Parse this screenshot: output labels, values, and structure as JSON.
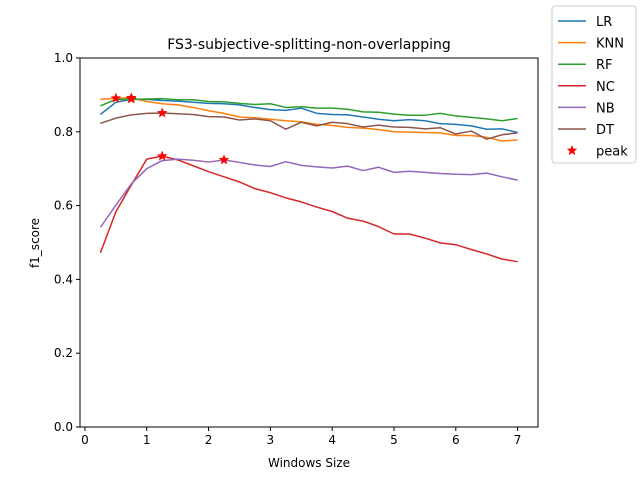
{
  "chart_data": {
    "type": "line",
    "title": "FS3-subjective-splitting-non-overlapping",
    "xlabel": "Windows Size",
    "ylabel": "f1_score",
    "xlim": [
      -0.08,
      7.33
    ],
    "ylim": [
      0.0,
      1.0
    ],
    "xticks": [
      0,
      1,
      2,
      3,
      4,
      5,
      6,
      7
    ],
    "yticks": [
      0.0,
      0.2,
      0.4,
      0.6,
      0.8,
      1.0
    ],
    "xtick_labels": [
      "0",
      "1",
      "2",
      "3",
      "4",
      "5",
      "6",
      "7"
    ],
    "ytick_labels": [
      "0.0",
      "0.2",
      "0.4",
      "0.6",
      "0.8",
      "1.0"
    ],
    "grid": false,
    "legend_position": "outside-top-right",
    "x": [
      0.25,
      0.5,
      0.75,
      1.0,
      1.25,
      1.5,
      1.75,
      2.0,
      2.25,
      2.5,
      2.75,
      3.0,
      3.25,
      3.5,
      3.75,
      4.0,
      4.25,
      4.5,
      4.75,
      5.0,
      5.25,
      5.5,
      5.75,
      6.0,
      6.25,
      6.5,
      6.75,
      7.0
    ],
    "series": [
      {
        "name": "LR",
        "color": "#1f77b4",
        "values": [
          0.847,
          0.88,
          0.888,
          0.888,
          0.885,
          0.883,
          0.88,
          0.877,
          0.876,
          0.873,
          0.866,
          0.86,
          0.858,
          0.864,
          0.85,
          0.847,
          0.846,
          0.84,
          0.834,
          0.83,
          0.833,
          0.83,
          0.822,
          0.82,
          0.816,
          0.807,
          0.808,
          0.798
        ]
      },
      {
        "name": "KNN",
        "color": "#ff7f0e",
        "values": [
          0.888,
          0.891,
          0.892,
          0.882,
          0.876,
          0.873,
          0.866,
          0.857,
          0.85,
          0.84,
          0.838,
          0.834,
          0.83,
          0.827,
          0.82,
          0.817,
          0.812,
          0.81,
          0.806,
          0.8,
          0.799,
          0.798,
          0.797,
          0.79,
          0.79,
          0.785,
          0.775,
          0.778
        ]
      },
      {
        "name": "RF",
        "color": "#2ca02c",
        "values": [
          0.87,
          0.888,
          0.888,
          0.889,
          0.89,
          0.887,
          0.887,
          0.882,
          0.881,
          0.877,
          0.874,
          0.876,
          0.866,
          0.868,
          0.864,
          0.864,
          0.861,
          0.854,
          0.853,
          0.848,
          0.845,
          0.845,
          0.85,
          0.843,
          0.839,
          0.835,
          0.83,
          0.836
        ]
      },
      {
        "name": "NC",
        "color": "#d62728",
        "values": [
          0.472,
          0.583,
          0.656,
          0.726,
          0.734,
          0.724,
          0.708,
          0.692,
          0.678,
          0.664,
          0.646,
          0.635,
          0.621,
          0.61,
          0.596,
          0.584,
          0.566,
          0.558,
          0.543,
          0.523,
          0.523,
          0.512,
          0.499,
          0.494,
          0.481,
          0.469,
          0.455,
          0.448
        ]
      },
      {
        "name": "NB",
        "color": "#9467bd",
        "values": [
          0.541,
          0.601,
          0.659,
          0.7,
          0.722,
          0.726,
          0.723,
          0.718,
          0.724,
          0.717,
          0.71,
          0.706,
          0.719,
          0.709,
          0.705,
          0.702,
          0.707,
          0.695,
          0.704,
          0.69,
          0.693,
          0.69,
          0.687,
          0.685,
          0.684,
          0.688,
          0.678,
          0.669
        ]
      },
      {
        "name": "DT",
        "color": "#8c564b",
        "values": [
          0.823,
          0.837,
          0.846,
          0.85,
          0.851,
          0.849,
          0.847,
          0.841,
          0.84,
          0.832,
          0.835,
          0.83,
          0.807,
          0.826,
          0.816,
          0.826,
          0.822,
          0.813,
          0.818,
          0.813,
          0.812,
          0.808,
          0.811,
          0.794,
          0.802,
          0.78,
          0.792,
          0.797
        ]
      }
    ],
    "peak": {
      "name": "peak",
      "color": "#ff0000",
      "marker": "star",
      "points": [
        {
          "x": 0.5,
          "y": 0.891
        },
        {
          "x": 0.75,
          "y": 0.892
        },
        {
          "x": 0.75,
          "y": 0.889
        },
        {
          "x": 1.25,
          "y": 0.851
        },
        {
          "x": 1.25,
          "y": 0.734
        },
        {
          "x": 2.25,
          "y": 0.724
        }
      ]
    }
  }
}
